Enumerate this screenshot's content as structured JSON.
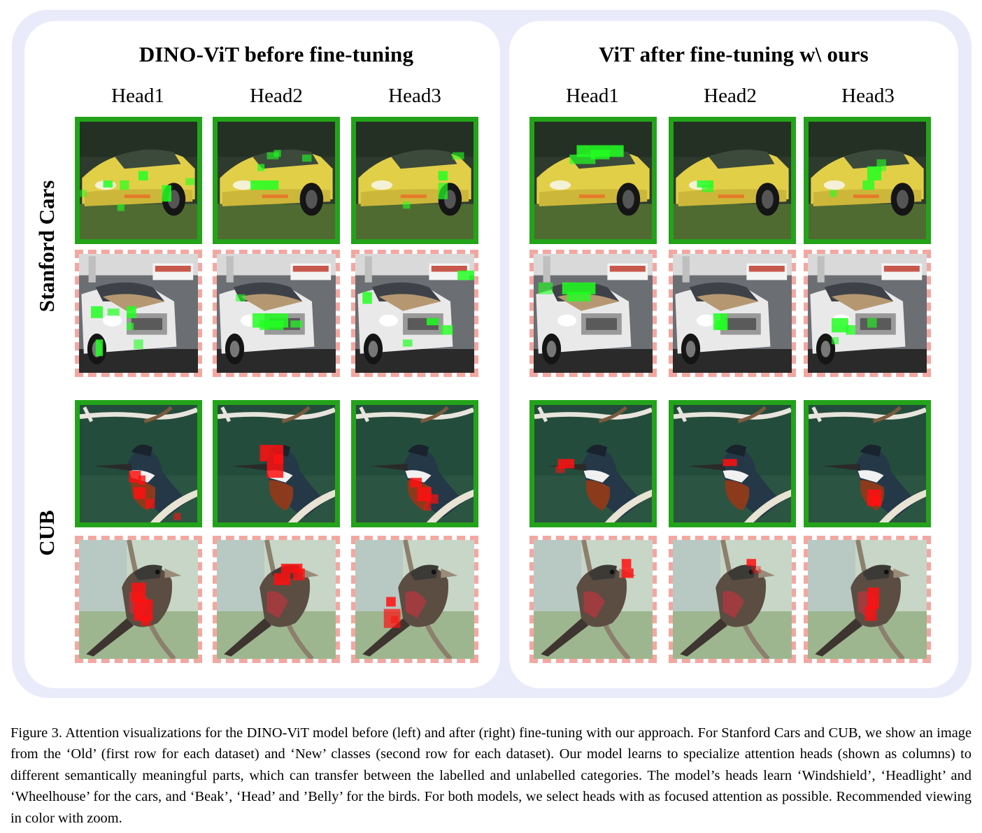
{
  "figure": {
    "panels": [
      {
        "title": "DINO-ViT before fine-tuning",
        "heads": [
          "Head1",
          "Head2",
          "Head3"
        ]
      },
      {
        "title": "ViT after fine-tuning w\\ ours",
        "heads": [
          "Head1",
          "Head2",
          "Head3"
        ]
      }
    ],
    "datasets": [
      "Stanford Cars",
      "CUB"
    ]
  },
  "colors": {
    "old_class_border": "#23a31a",
    "new_class_border": "#f3a7a1",
    "cars_attention": "#22ff22",
    "cub_attention": "#ff1010",
    "outer_frame": "#e9ebfa"
  },
  "caption": "Figure 3. Attention visualizations for the DINO-ViT model before (left) and after (right) fine-tuning with our approach. For Stanford Cars and CUB, we show an image from the ‘Old’ (first row for each dataset) and ‘New’ classes (second row for each dataset). Our model learns to specialize attention heads (shown as columns) to different semantically meaningful parts, which can transfer between the labelled and unlabelled categories. The model’s heads learn ‘Windshield’, ‘Headlight’ and ‘Wheelhouse’ for the cars, and ‘Beak’, ‘Head’ and ’Belly’ for the birds. For both models, we select heads with as focused attention as possible. Recommended viewing in color with zoom."
}
